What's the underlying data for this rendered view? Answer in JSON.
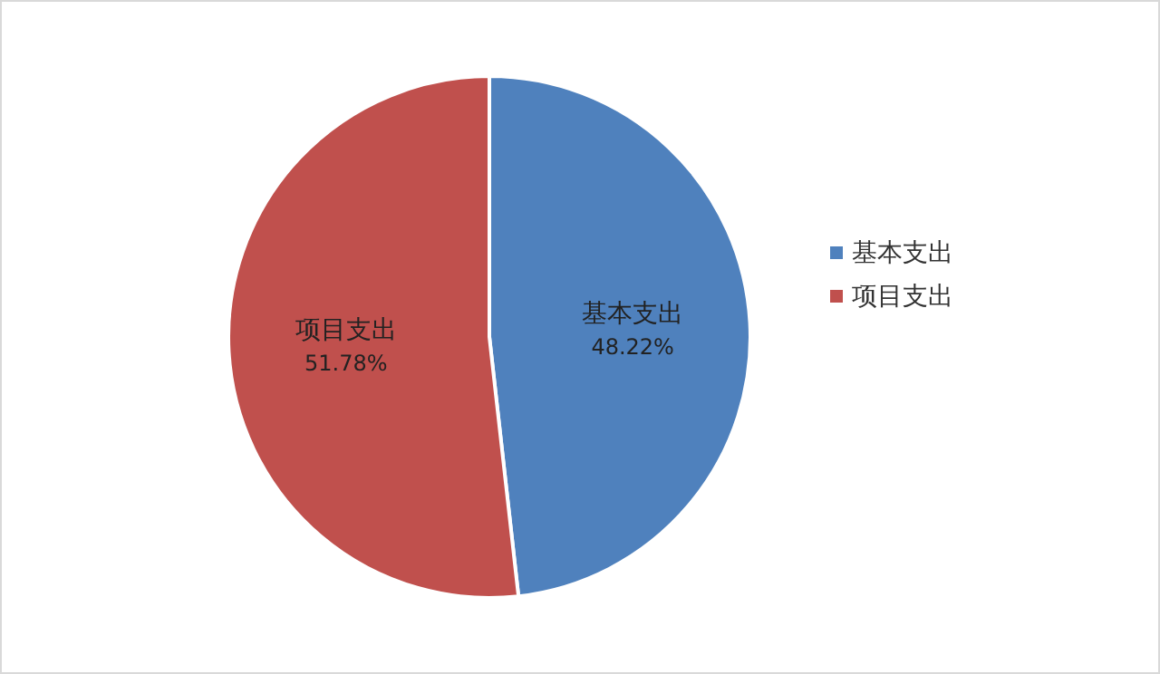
{
  "chart_data": {
    "type": "pie",
    "categories": [
      "基本支出",
      "项目支出"
    ],
    "values": [
      48.22,
      51.78
    ],
    "colors": [
      "#4f81bd",
      "#c0504d"
    ],
    "value_labels": [
      "48.22%",
      "51.78%"
    ],
    "legend": "right"
  }
}
